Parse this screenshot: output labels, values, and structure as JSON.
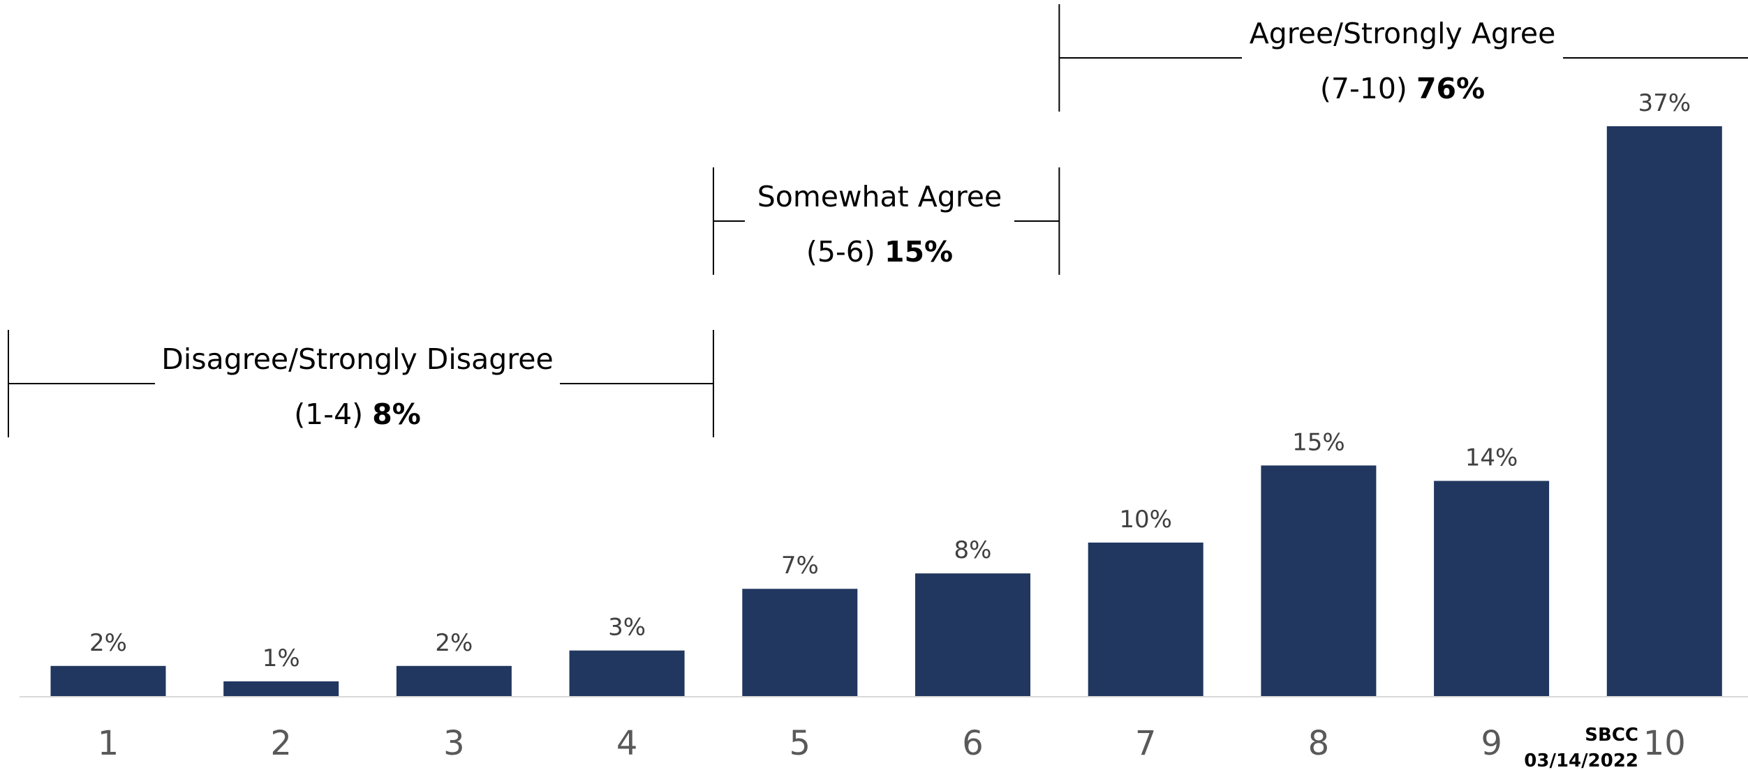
{
  "chart_data": {
    "type": "bar",
    "categories": [
      "1",
      "2",
      "3",
      "4",
      "5",
      "6",
      "7",
      "8",
      "9",
      "10"
    ],
    "values": [
      2,
      1,
      2,
      3,
      7,
      8,
      10,
      15,
      14,
      37
    ],
    "value_labels": [
      "2%",
      "1%",
      "2%",
      "3%",
      "7%",
      "8%",
      "10%",
      "15%",
      "14%",
      "37%"
    ],
    "ylim": [
      0,
      38
    ],
    "grid": false,
    "bar_color": "#21375F",
    "groups": [
      {
        "title": "Disagree/Strongly Disagree",
        "range": "(1-4)",
        "pct": "8%",
        "start": 1,
        "end": 4
      },
      {
        "title": "Somewhat Agree",
        "range": "(5-6)",
        "pct": "15%",
        "start": 5,
        "end": 6
      },
      {
        "title": "Agree/Strongly Agree",
        "range": "(7-10)",
        "pct": "76%",
        "start": 7,
        "end": 10
      }
    ]
  },
  "stamp": {
    "line1": "SBCC",
    "line2": "03/14/2022"
  }
}
